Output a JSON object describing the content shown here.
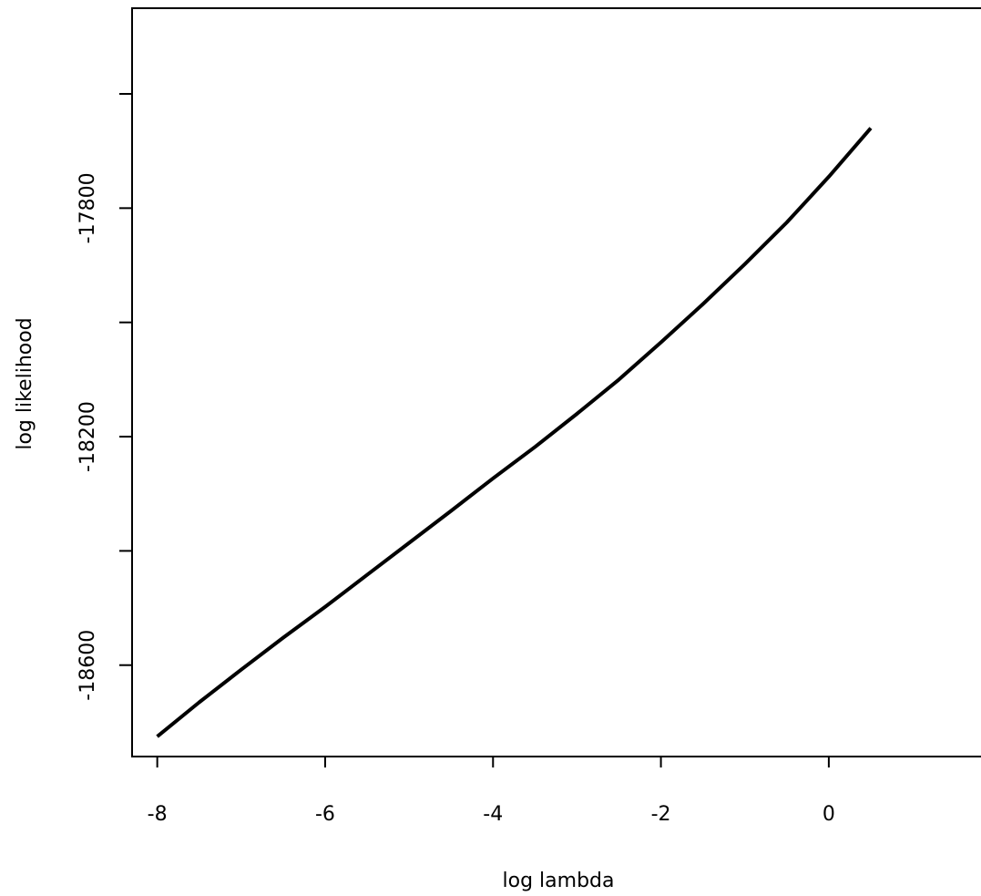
{
  "chart_data": {
    "type": "line",
    "title": "",
    "xlabel": "log lambda",
    "ylabel": "log likelihood",
    "xlim": [
      -8.3,
      1.9
    ],
    "ylim": [
      -18760,
      -17450
    ],
    "x_ticks": [
      -8,
      -6,
      -4,
      -2,
      0
    ],
    "x_tick_labels": [
      "-8",
      "-6",
      "-4",
      "-2",
      "0"
    ],
    "y_ticks": [
      -18600,
      -18400,
      -18200,
      -18000,
      -17800,
      -17600
    ],
    "y_tick_labels": [
      "-18600",
      "",
      "-18200",
      "",
      "-17800",
      ""
    ],
    "grid": false,
    "legend": "none",
    "series": [
      {
        "color": "#000000",
        "x": [
          -8.0,
          -7.5,
          -7.0,
          -6.5,
          -6.0,
          -5.5,
          -5.0,
          -4.5,
          -4.0,
          -3.5,
          -3.0,
          -2.5,
          -2.0,
          -1.5,
          -1.0,
          -0.5,
          0.0,
          0.5
        ],
        "y": [
          -18725,
          -18665,
          -18608,
          -18552,
          -18498,
          -18442,
          -18386,
          -18330,
          -18273,
          -18218,
          -18160,
          -18100,
          -18035,
          -17968,
          -17898,
          -17825,
          -17745,
          -17660
        ]
      }
    ]
  }
}
